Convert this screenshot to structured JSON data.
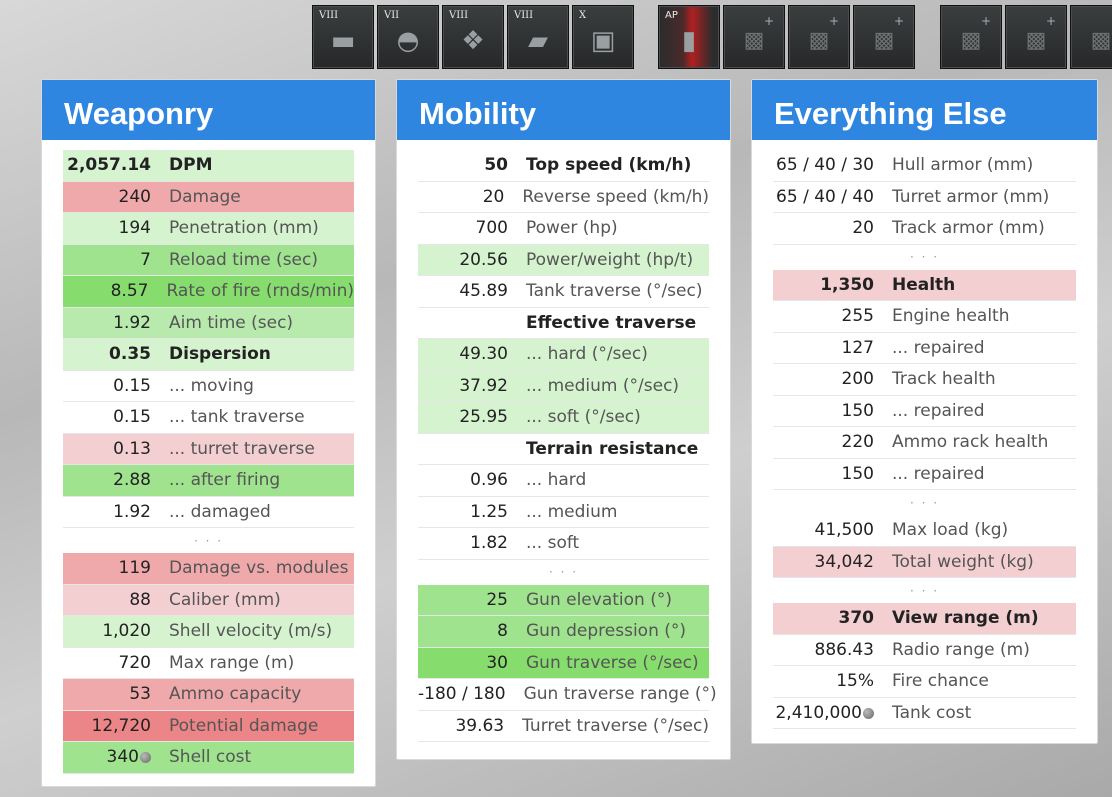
{
  "modules": [
    {
      "tier": "VIII",
      "name": "gun-module",
      "glyph": "▬"
    },
    {
      "tier": "VII",
      "name": "turret-module",
      "glyph": "◓"
    },
    {
      "tier": "VIII",
      "name": "engine-module",
      "glyph": "❖"
    },
    {
      "tier": "VIII",
      "name": "suspension-module",
      "glyph": "▰"
    },
    {
      "tier": "X",
      "name": "radio-module",
      "glyph": "▣"
    },
    {
      "tier": "AP",
      "name": "ap-shell",
      "glyph": "▮"
    },
    {
      "tier": "",
      "name": "equipment-slot-1",
      "glyph": "▩",
      "plus": "+"
    },
    {
      "tier": "",
      "name": "equipment-slot-2",
      "glyph": "▩",
      "plus": "+"
    },
    {
      "tier": "",
      "name": "equipment-slot-3",
      "glyph": "▩",
      "plus": "+"
    },
    {
      "tier": "",
      "name": "consumable-slot-1",
      "glyph": "▩",
      "plus": "+"
    },
    {
      "tier": "",
      "name": "consumable-slot-2",
      "glyph": "▩",
      "plus": "+"
    },
    {
      "tier": "",
      "name": "consumable-slot-3",
      "glyph": "▩",
      "plus": "+"
    }
  ],
  "weaponry": {
    "title": "Weaponry",
    "rows": [
      {
        "val": "2,057.14",
        "lbl": "DPM",
        "cls": "g1 bold"
      },
      {
        "val": "240",
        "lbl": "Damage",
        "cls": "r2"
      },
      {
        "val": "194",
        "lbl": "Penetration (mm)",
        "cls": "g1"
      },
      {
        "val": "7",
        "lbl": "Reload time (sec)",
        "cls": "g3"
      },
      {
        "val": "8.57",
        "lbl": "Rate of fire (rnds/min)",
        "cls": "g4"
      },
      {
        "val": "1.92",
        "lbl": "Aim time (sec)",
        "cls": "g2"
      },
      {
        "val": "0.35",
        "lbl": "Dispersion",
        "cls": "g1 bold"
      },
      {
        "val": "0.15",
        "lbl": "... moving",
        "cls": ""
      },
      {
        "val": "0.15",
        "lbl": "... tank traverse",
        "cls": ""
      },
      {
        "val": "0.13",
        "lbl": "... turret traverse",
        "cls": "r1"
      },
      {
        "val": "2.88",
        "lbl": "... after firing",
        "cls": "g3"
      },
      {
        "val": "1.92",
        "lbl": "... damaged",
        "cls": ""
      },
      {
        "dots": "· · ·"
      },
      {
        "val": "119",
        "lbl": "Damage vs. modules",
        "cls": "r2"
      },
      {
        "val": "88",
        "lbl": "Caliber (mm)",
        "cls": "r1"
      },
      {
        "val": "1,020",
        "lbl": "Shell velocity (m/s)",
        "cls": "g1"
      },
      {
        "val": "720",
        "lbl": "Max range (m)",
        "cls": ""
      },
      {
        "val": "53",
        "lbl": "Ammo capacity",
        "cls": "r2"
      },
      {
        "val": "12,720",
        "lbl": "Potential damage",
        "cls": "r3"
      },
      {
        "val": "340",
        "lbl": "Shell cost",
        "cls": "g3",
        "coin": true
      }
    ]
  },
  "mobility": {
    "title": "Mobility",
    "rows": [
      {
        "val": "50",
        "lbl": "Top speed (km/h)",
        "cls": "bold"
      },
      {
        "val": "20",
        "lbl": "Reverse speed (km/h)",
        "cls": ""
      },
      {
        "val": "700",
        "lbl": "Power (hp)",
        "cls": ""
      },
      {
        "val": "20.56",
        "lbl": "Power/weight (hp/t)",
        "cls": "g1"
      },
      {
        "val": "45.89",
        "lbl": "Tank traverse (°/sec)",
        "cls": ""
      },
      {
        "val": "",
        "lbl": "Effective traverse",
        "cls": "section"
      },
      {
        "val": "49.30",
        "lbl": "... hard (°/sec)",
        "cls": "g1"
      },
      {
        "val": "37.92",
        "lbl": "... medium (°/sec)",
        "cls": "g1"
      },
      {
        "val": "25.95",
        "lbl": "... soft (°/sec)",
        "cls": "g1"
      },
      {
        "val": "",
        "lbl": "Terrain resistance",
        "cls": "section"
      },
      {
        "val": "0.96",
        "lbl": "... hard",
        "cls": ""
      },
      {
        "val": "1.25",
        "lbl": "... medium",
        "cls": ""
      },
      {
        "val": "1.82",
        "lbl": "... soft",
        "cls": ""
      },
      {
        "dots": "· · ·"
      },
      {
        "val": "25",
        "lbl": "Gun elevation (°)",
        "cls": "g3"
      },
      {
        "val": "8",
        "lbl": "Gun depression (°)",
        "cls": "g3"
      },
      {
        "val": "30",
        "lbl": "Gun traverse (°/sec)",
        "cls": "g4"
      },
      {
        "val": "-180 / 180",
        "lbl": "Gun traverse range (°)",
        "cls": ""
      },
      {
        "val": "39.63",
        "lbl": "Turret traverse (°/sec)",
        "cls": ""
      }
    ]
  },
  "everything_else": {
    "title": "Everything Else",
    "rows": [
      {
        "val": "65 / 40 / 30",
        "lbl": "Hull armor (mm)",
        "cls": ""
      },
      {
        "val": "65 / 40 / 40",
        "lbl": "Turret armor (mm)",
        "cls": ""
      },
      {
        "val": "20",
        "lbl": "Track armor (mm)",
        "cls": ""
      },
      {
        "dots": "· · ·"
      },
      {
        "val": "1,350",
        "lbl": "Health",
        "cls": "r1 bold"
      },
      {
        "val": "255",
        "lbl": "Engine health",
        "cls": ""
      },
      {
        "val": "127",
        "lbl": "... repaired",
        "cls": ""
      },
      {
        "val": "200",
        "lbl": "Track health",
        "cls": ""
      },
      {
        "val": "150",
        "lbl": "... repaired",
        "cls": ""
      },
      {
        "val": "220",
        "lbl": "Ammo rack health",
        "cls": ""
      },
      {
        "val": "150",
        "lbl": "... repaired",
        "cls": ""
      },
      {
        "dots": "· · ·"
      },
      {
        "val": "41,500",
        "lbl": "Max load (kg)",
        "cls": ""
      },
      {
        "val": "34,042",
        "lbl": "Total weight (kg)",
        "cls": "r1"
      },
      {
        "dots": "· · ·"
      },
      {
        "val": "370",
        "lbl": "View range (m)",
        "cls": "r1 bold"
      },
      {
        "val": "886.43",
        "lbl": "Radio range (m)",
        "cls": ""
      },
      {
        "val": "15%",
        "lbl": "Fire chance",
        "cls": ""
      },
      {
        "val": "2,410,000",
        "lbl": "Tank cost",
        "cls": "",
        "coin": true
      }
    ]
  }
}
